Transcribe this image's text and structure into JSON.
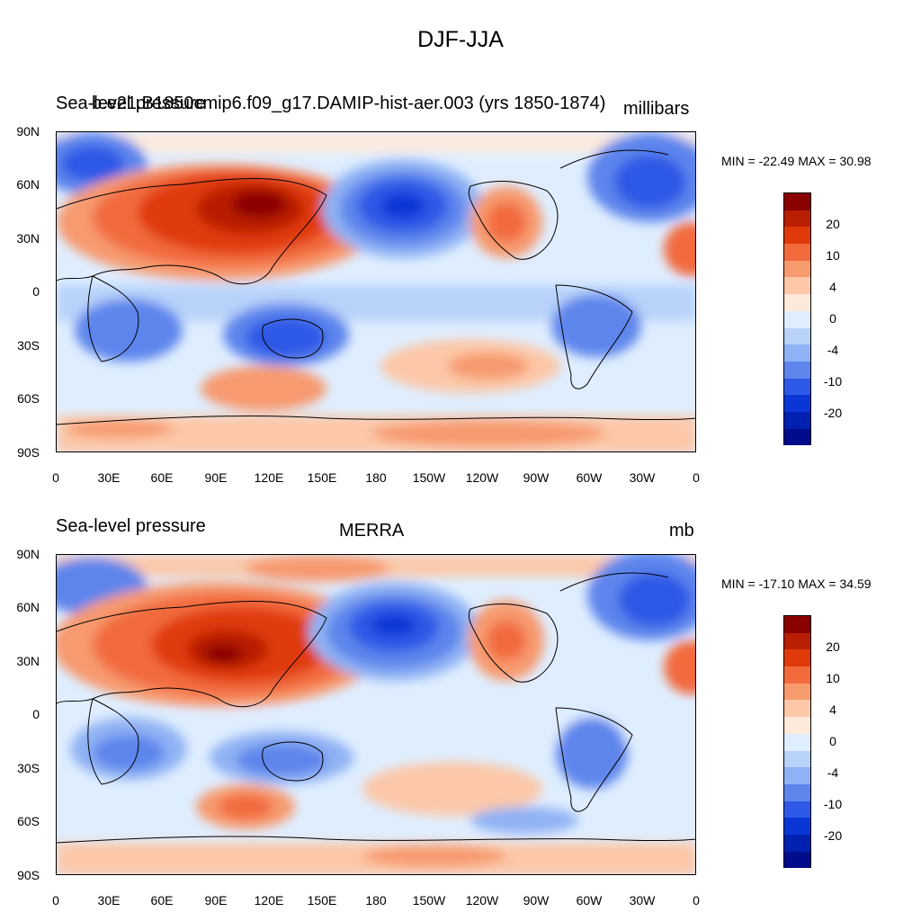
{
  "title": "DJF-JJA",
  "lat_labels": [
    "90N",
    "60N",
    "30N",
    "0",
    "30S",
    "60S",
    "90S"
  ],
  "lon_labels": [
    "0",
    "30E",
    "60E",
    "90E",
    "120E",
    "150E",
    "180",
    "150W",
    "120W",
    "90W",
    "60W",
    "30W",
    "0"
  ],
  "colorbar": {
    "colors": [
      "#8b0000",
      "#b81e00",
      "#e03a0a",
      "#f26a3c",
      "#f79a6e",
      "#fcc8a8",
      "#feeadb",
      "#dfeeff",
      "#b8d2fa",
      "#8fb2f4",
      "#5d85ec",
      "#2e58e6",
      "#0b36d6",
      "#0020b0",
      "#000c8a"
    ],
    "labels": [
      "20",
      "10",
      "4",
      "0",
      "-4",
      "-10",
      "-20"
    ]
  },
  "panels": [
    {
      "overlay_left": "Sea-level pressure",
      "overlay_center": "b.e21.B1850cmip6.f09_g17.DAMIP-hist-aer.003 (yrs 1850-1874)",
      "units": "millibars",
      "min_max": "MIN = -22.49 MAX =  30.98"
    },
    {
      "overlay_left": "Sea-level pressure",
      "overlay_center": "MERRA",
      "units": "mb",
      "min_max": "MIN = -17.10 MAX =  34.59"
    }
  ]
}
